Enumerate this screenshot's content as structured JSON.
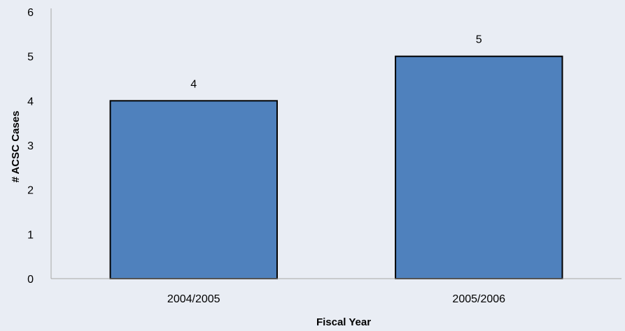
{
  "chart_data": {
    "type": "bar",
    "categories": [
      "2004/2005",
      "2005/2006"
    ],
    "values": [
      4,
      5
    ],
    "data_labels": [
      "4",
      "5"
    ],
    "xlabel": "Fiscal Year",
    "ylabel": "# ACSC Cases",
    "ylim": [
      0,
      6
    ],
    "yticks": [
      0,
      1,
      2,
      3,
      4,
      5,
      6
    ],
    "grid": false,
    "legend": "none",
    "bar_color": "#4f81bd",
    "bar_edge_color": "#000000",
    "background_color": "#e9edf4",
    "axis_color": "#a6a6a6"
  }
}
